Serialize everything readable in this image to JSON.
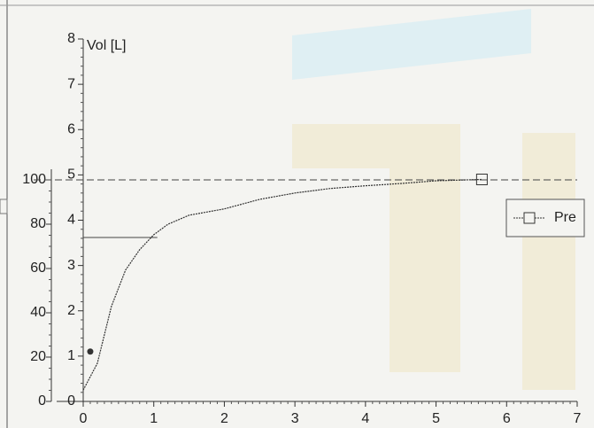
{
  "chart_data": {
    "type": "line",
    "y_label": "Vol [L]",
    "x": [
      0,
      0.2,
      0.4,
      0.6,
      0.8,
      1.0,
      1.2,
      1.5,
      2.0,
      2.5,
      3.0,
      3.5,
      4.0,
      4.5,
      5.0,
      5.65
    ],
    "series": [
      {
        "name": "Pre",
        "color": "#333333",
        "marker": "square",
        "values": [
          0.25,
          0.84,
          2.1,
          2.9,
          3.35,
          3.68,
          3.91,
          4.11,
          4.25,
          4.46,
          4.6,
          4.7,
          4.76,
          4.81,
          4.87,
          4.9
        ]
      }
    ],
    "points": [
      {
        "x": 0.1,
        "y": 1.1
      }
    ],
    "hlines": [
      {
        "value": 100,
        "axis": "y2",
        "style": "dashed"
      },
      {
        "value": 74,
        "axis": "y2",
        "style": "solid",
        "x_end": 1.05
      }
    ],
    "xlim": [
      0,
      7
    ],
    "xticks": [
      0,
      1,
      2,
      3,
      4,
      5,
      6,
      7
    ],
    "ylim": [
      0,
      8
    ],
    "yticks": [
      0,
      1,
      2,
      3,
      4,
      5,
      6,
      7,
      8
    ],
    "y2lim": [
      0,
      163.6
    ],
    "y2ticks": [
      0,
      20,
      40,
      60,
      80,
      100
    ],
    "legend": "right"
  }
}
